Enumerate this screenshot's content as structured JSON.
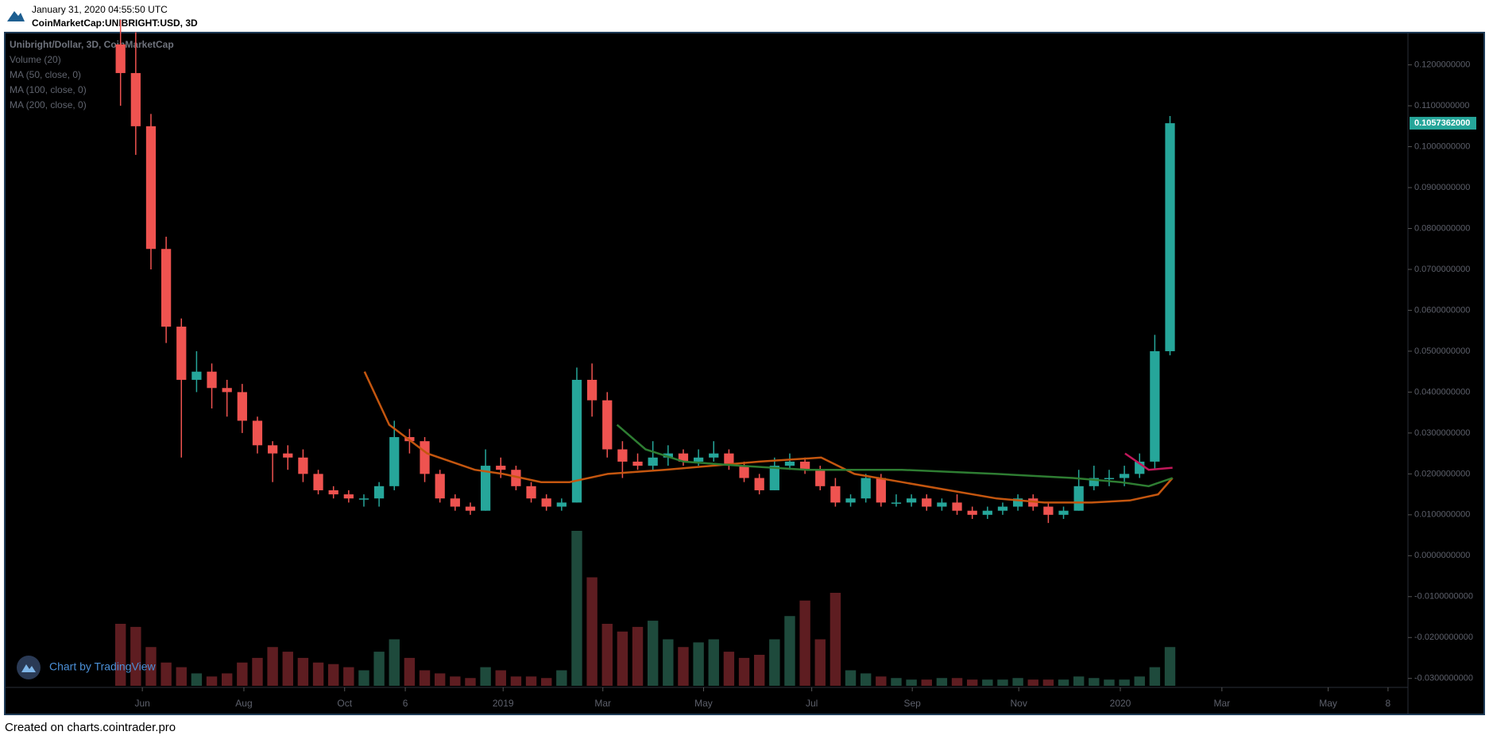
{
  "header": {
    "timestamp": "January 31, 2020 04:55:50 UTC",
    "symbol": "CoinMarketCap:UNIBRIGHT:USD, 3D"
  },
  "footer": "Created on charts.cointrader.pro",
  "chart_data": {
    "type": "candlestick",
    "legend": [
      "Unibright/Dollar, 3D, CoinMarketCap",
      "Volume (20)",
      "MA (50, close, 0)",
      "MA (100, close, 0)",
      "MA (200, close, 0)"
    ],
    "branding": "Chart by TradingView",
    "up_color": "#26a69a",
    "down_color": "#ef5350",
    "volume_up_color": "#1e4a3c",
    "volume_down_color": "#5e1d21",
    "x": [
      0,
      9,
      18,
      27,
      36,
      45,
      54,
      63,
      72,
      81,
      90,
      99,
      108,
      117,
      126,
      135,
      144,
      153,
      162,
      171,
      180,
      189,
      198,
      207,
      216,
      225,
      234,
      243,
      252,
      261,
      270,
      279,
      288,
      297,
      306,
      315,
      324,
      333,
      342,
      351,
      360,
      369,
      378,
      387,
      396,
      405,
      414,
      423,
      432,
      441,
      450,
      459,
      468,
      477,
      486,
      495,
      504,
      513,
      522,
      531,
      540,
      549,
      558,
      567,
      576,
      585,
      594,
      603,
      612,
      621
    ],
    "candles": [
      [
        0.125,
        0.131,
        0.11,
        0.118
      ],
      [
        0.118,
        0.128,
        0.098,
        0.105
      ],
      [
        0.105,
        0.108,
        0.07,
        0.075
      ],
      [
        0.075,
        0.078,
        0.052,
        0.056
      ],
      [
        0.056,
        0.058,
        0.024,
        0.043
      ],
      [
        0.043,
        0.05,
        0.04,
        0.045
      ],
      [
        0.045,
        0.047,
        0.036,
        0.041
      ],
      [
        0.041,
        0.043,
        0.034,
        0.04
      ],
      [
        0.04,
        0.042,
        0.03,
        0.033
      ],
      [
        0.033,
        0.034,
        0.025,
        0.027
      ],
      [
        0.027,
        0.028,
        0.018,
        0.025
      ],
      [
        0.025,
        0.027,
        0.021,
        0.024
      ],
      [
        0.024,
        0.026,
        0.018,
        0.02
      ],
      [
        0.02,
        0.021,
        0.015,
        0.016
      ],
      [
        0.016,
        0.017,
        0.014,
        0.015
      ],
      [
        0.015,
        0.016,
        0.013,
        0.014
      ],
      [
        0.014,
        0.015,
        0.012,
        0.014
      ],
      [
        0.014,
        0.018,
        0.012,
        0.017
      ],
      [
        0.017,
        0.033,
        0.016,
        0.029
      ],
      [
        0.029,
        0.031,
        0.025,
        0.028
      ],
      [
        0.028,
        0.029,
        0.018,
        0.02
      ],
      [
        0.02,
        0.021,
        0.013,
        0.014
      ],
      [
        0.014,
        0.015,
        0.011,
        0.012
      ],
      [
        0.012,
        0.013,
        0.01,
        0.011
      ],
      [
        0.011,
        0.026,
        0.011,
        0.022
      ],
      [
        0.022,
        0.024,
        0.019,
        0.021
      ],
      [
        0.021,
        0.022,
        0.016,
        0.017
      ],
      [
        0.017,
        0.018,
        0.013,
        0.014
      ],
      [
        0.014,
        0.015,
        0.011,
        0.012
      ],
      [
        0.012,
        0.014,
        0.011,
        0.013
      ],
      [
        0.013,
        0.046,
        0.013,
        0.043
      ],
      [
        0.043,
        0.047,
        0.034,
        0.038
      ],
      [
        0.038,
        0.04,
        0.024,
        0.026
      ],
      [
        0.026,
        0.028,
        0.019,
        0.023
      ],
      [
        0.023,
        0.025,
        0.021,
        0.022
      ],
      [
        0.022,
        0.028,
        0.021,
        0.024
      ],
      [
        0.024,
        0.027,
        0.022,
        0.025
      ],
      [
        0.025,
        0.026,
        0.022,
        0.023
      ],
      [
        0.023,
        0.026,
        0.022,
        0.024
      ],
      [
        0.024,
        0.028,
        0.023,
        0.025
      ],
      [
        0.025,
        0.026,
        0.021,
        0.022
      ],
      [
        0.022,
        0.023,
        0.018,
        0.019
      ],
      [
        0.019,
        0.02,
        0.015,
        0.016
      ],
      [
        0.016,
        0.024,
        0.016,
        0.022
      ],
      [
        0.022,
        0.025,
        0.021,
        0.023
      ],
      [
        0.023,
        0.024,
        0.02,
        0.021
      ],
      [
        0.021,
        0.022,
        0.016,
        0.017
      ],
      [
        0.017,
        0.019,
        0.012,
        0.013
      ],
      [
        0.013,
        0.015,
        0.012,
        0.014
      ],
      [
        0.014,
        0.02,
        0.013,
        0.019
      ],
      [
        0.019,
        0.02,
        0.012,
        0.013
      ],
      [
        0.013,
        0.015,
        0.012,
        0.013
      ],
      [
        0.013,
        0.015,
        0.012,
        0.014
      ],
      [
        0.014,
        0.015,
        0.011,
        0.012
      ],
      [
        0.012,
        0.014,
        0.011,
        0.013
      ],
      [
        0.013,
        0.015,
        0.01,
        0.011
      ],
      [
        0.011,
        0.012,
        0.009,
        0.01
      ],
      [
        0.01,
        0.012,
        0.009,
        0.011
      ],
      [
        0.011,
        0.013,
        0.01,
        0.012
      ],
      [
        0.012,
        0.015,
        0.011,
        0.014
      ],
      [
        0.014,
        0.015,
        0.011,
        0.012
      ],
      [
        0.012,
        0.013,
        0.008,
        0.01
      ],
      [
        0.01,
        0.012,
        0.009,
        0.011
      ],
      [
        0.011,
        0.021,
        0.011,
        0.017
      ],
      [
        0.017,
        0.022,
        0.016,
        0.019
      ],
      [
        0.019,
        0.021,
        0.017,
        0.019
      ],
      [
        0.019,
        0.022,
        0.017,
        0.02
      ],
      [
        0.02,
        0.025,
        0.019,
        0.023
      ],
      [
        0.023,
        0.054,
        0.021,
        0.05
      ],
      [
        0.05,
        0.1075,
        0.049,
        0.1057362
      ]
    ],
    "volume": [
      40,
      38,
      25,
      15,
      12,
      8,
      6,
      8,
      15,
      18,
      25,
      22,
      18,
      15,
      14,
      12,
      10,
      22,
      30,
      18,
      10,
      8,
      6,
      5,
      12,
      10,
      6,
      6,
      5,
      10,
      100,
      70,
      40,
      35,
      38,
      42,
      30,
      25,
      28,
      30,
      22,
      18,
      20,
      30,
      45,
      55,
      30,
      60,
      10,
      8,
      6,
      5,
      4,
      4,
      5,
      5,
      4,
      4,
      4,
      5,
      4,
      4,
      4,
      6,
      5,
      4,
      4,
      6,
      12,
      25
    ],
    "moving_averages": [
      {
        "name": "MA (50, close, 0)",
        "color": "#c4560f",
        "x": [
          144.4,
          159,
          181.5,
          209.6,
          226.4,
          248.9,
          265.7,
          288.2,
          321.9,
          350,
          378,
          414.6,
          434.3,
          462.4,
          490.4,
          518.5,
          546.6,
          574.7,
          597.2,
          614,
          622.5
        ],
        "values": [
          0.045,
          0.032,
          0.025,
          0.021,
          0.02,
          0.018,
          0.018,
          0.02,
          0.021,
          0.022,
          0.023,
          0.024,
          0.02,
          0.018,
          0.016,
          0.014,
          0.013,
          0.013,
          0.0135,
          0.015,
          0.019
        ]
      },
      {
        "name": "MA (100, close, 0)",
        "color": "#2e7d32",
        "x": [
          293.8,
          310.7,
          333.1,
          366.9,
          406.2,
          462.4,
          518.5,
          563.5,
          591.6,
          608.4,
          622.5
        ],
        "values": [
          0.032,
          0.026,
          0.023,
          0.022,
          0.021,
          0.021,
          0.02,
          0.019,
          0.018,
          0.017,
          0.019
        ]
      },
      {
        "name": "MA (200, close, 0)",
        "color": "#c2185b",
        "x": [
          594.4,
          608.4,
          622.5
        ],
        "values": [
          0.025,
          0.021,
          0.0215
        ]
      }
    ],
    "last_price": {
      "value": 0.1057362,
      "label": "0.1057362000"
    },
    "xlim": [
      -68.5,
      761.8
    ],
    "xticks": [
      {
        "value": 12.9,
        "label": "Jun"
      },
      {
        "value": 73,
        "label": "Aug"
      },
      {
        "value": 132.6,
        "label": "Oct"
      },
      {
        "value": 168.5,
        "label": "6"
      },
      {
        "value": 226.4,
        "label": "2019"
      },
      {
        "value": 285.4,
        "label": "Mar"
      },
      {
        "value": 345,
        "label": "May"
      },
      {
        "value": 409,
        "label": "Jul"
      },
      {
        "value": 468.5,
        "label": "Sep"
      },
      {
        "value": 531.5,
        "label": "Nov"
      },
      {
        "value": 591.6,
        "label": "2020"
      },
      {
        "value": 651.7,
        "label": "Mar"
      },
      {
        "value": 714.6,
        "label": "May"
      },
      {
        "value": 750,
        "label": "8"
      }
    ],
    "ylim": [
      -0.0318,
      0.1277
    ],
    "yticks": [
      {
        "value": 0.12,
        "label": "0.1200000000"
      },
      {
        "value": 0.11,
        "label": "0.1100000000"
      },
      {
        "value": 0.1,
        "label": "0.1000000000"
      },
      {
        "value": 0.09,
        "label": "0.0900000000"
      },
      {
        "value": 0.08,
        "label": "0.0800000000"
      },
      {
        "value": 0.07,
        "label": "0.0700000000"
      },
      {
        "value": 0.06,
        "label": "0.0600000000"
      },
      {
        "value": 0.05,
        "label": "0.0500000000"
      },
      {
        "value": 0.04,
        "label": "0.0400000000"
      },
      {
        "value": 0.03,
        "label": "0.0300000000"
      },
      {
        "value": 0.02,
        "label": "0.0200000000"
      },
      {
        "value": 0.01,
        "label": "0.0100000000"
      },
      {
        "value": 0,
        "label": "0.0000000000"
      },
      {
        "value": -0.01,
        "label": "-0.0100000000"
      },
      {
        "value": -0.02,
        "label": "-0.0200000000"
      },
      {
        "value": -0.03,
        "label": "-0.0300000000"
      }
    ]
  }
}
